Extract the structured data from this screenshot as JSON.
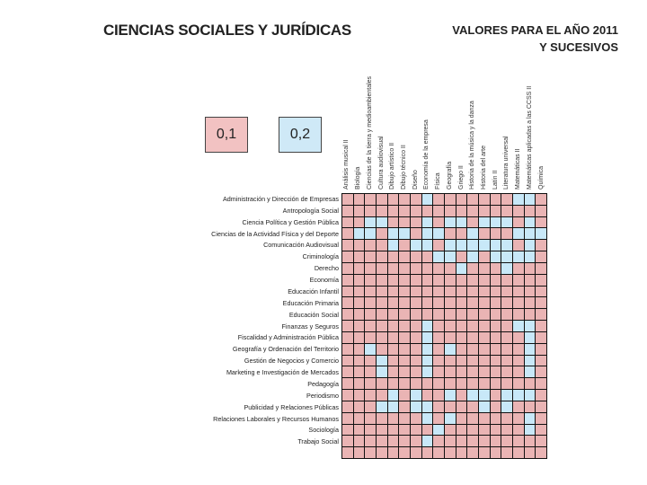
{
  "title": "CIENCIAS SOCIALES Y JURÍDICAS",
  "year_line1": "VALORES PARA EL AÑO 2011",
  "year_line2": "Y SUCESIVOS",
  "legend": {
    "pink_value": "0,1",
    "blue_value": "0,2",
    "pink_color": "#eab4b4",
    "blue_color": "#c8e8f8"
  },
  "columns": [
    "Análisis musical II",
    "Biología",
    "Ciencias de la tierra y medioambientales",
    "Cultura audiovisual",
    "Dibujo artístico II",
    "Dibujo técnico II",
    "Diseño",
    "Economía de la empresa",
    "Física",
    "Geografía",
    "Griego II",
    "Historia de la música y la danza",
    "Historia del arte",
    "Latín II",
    "Literatura universal",
    "Matemáticas II",
    "Matemáticas aplicadas a las CCSS II",
    "Química"
  ],
  "rows": [
    {
      "label": "Administración y Dirección de Empresas",
      "cells": "pppppppbpppppppbbp"
    },
    {
      "label": "Antropología Social",
      "cells": "pppppppppppppppppp"
    },
    {
      "label": "Ciencia Política y Gestión Pública",
      "cells": "ppbbpppbpbbpbbbpbp"
    },
    {
      "label": "Ciencias de la Actividad Física y del Deporte",
      "cells": "pbbpbbpbbppbpppbbb"
    },
    {
      "label": "Comunicación Audiovisual",
      "cells": "ppppbpbbpbbbbbbpbp"
    },
    {
      "label": "Criminología",
      "cells": "ppppppppbbpbpbbbbp"
    },
    {
      "label": "Derecho",
      "cells": "ppppppppppbpppbppp"
    },
    {
      "label": "Economía",
      "cells": "pppppppppppppppppp"
    },
    {
      "label": "Educación Infantil",
      "cells": "pppppppppppppppppp"
    },
    {
      "label": "Educación Primaria",
      "cells": "pppppppppppppppppp"
    },
    {
      "label": "Educación Social",
      "cells": "pppppppppppppppppp"
    },
    {
      "label": "Finanzas y Seguros",
      "cells": "pppppppbpppppppbbp"
    },
    {
      "label": "Fiscalidad y Administración Pública",
      "cells": "pppppppbppppppppbp"
    },
    {
      "label": "Geografía y Ordenación del Territorio",
      "cells": "ppbppppbpbppppppbp"
    },
    {
      "label": "Gestión de Negocios y Comercio",
      "cells": "pppbpppbppppppppbp"
    },
    {
      "label": "Marketing e Investigación de Mercados",
      "cells": "pppbpppbppppppppbp"
    },
    {
      "label": "Pedagogía",
      "cells": "pppppppppppppppppp"
    },
    {
      "label": "Periodismo",
      "cells": "ppppbpbppbpbbpbbbp"
    },
    {
      "label": "Publicidad y Relaciones Públicas",
      "cells": "pppbbpbbppppbpbppp"
    },
    {
      "label": "Relaciones Laborales y Recursos Humanos",
      "cells": "pppppppbpbppppppbp"
    },
    {
      "label": "Sociología",
      "cells": "ppppppppbpppppppbp"
    },
    {
      "label": "Trabajo Social",
      "cells": "pppppppbpppppppppp"
    }
  ]
}
